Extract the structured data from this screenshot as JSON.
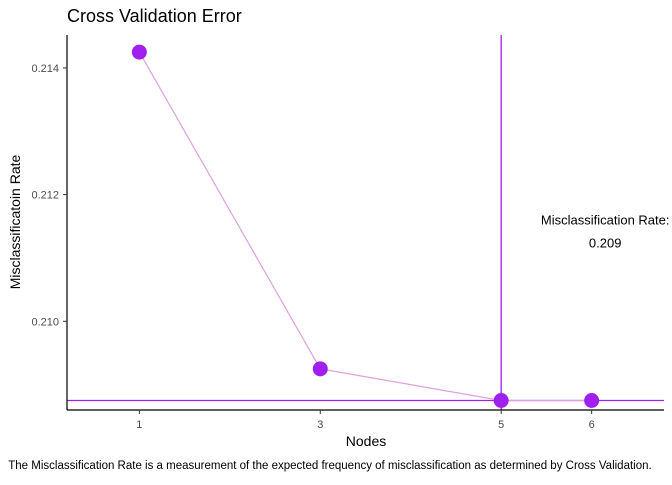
{
  "chart_data": {
    "type": "line",
    "title": "Cross Validation Error",
    "xlabel": "Nodes",
    "ylabel": "Misclassificatoin Rate",
    "caption": "The Misclassification Rate is a measurement of the expected frequency of misclassification as determined by Cross Validation.",
    "x": [
      1,
      3,
      5,
      6
    ],
    "y": [
      0.21425,
      0.20925,
      0.20875,
      0.20875
    ],
    "xticks": [
      "1",
      "3",
      "5",
      "6"
    ],
    "yticks": [
      "0.210",
      "0.212",
      "0.214"
    ],
    "ytick_values": [
      0.21,
      0.212,
      0.214
    ],
    "xlim": [
      0.2,
      6.8
    ],
    "ylim": [
      0.2086,
      0.21452
    ],
    "reference_lines": {
      "vertical_x": 5,
      "horizontal_y": 0.20875
    },
    "annotation": {
      "label": "Misclassification Rate:",
      "value": "0.209",
      "x": 6.15,
      "y": 0.2114
    },
    "grid": false,
    "colors": {
      "point": "#a020f0",
      "line": "#dda0dd",
      "reference": "#a020f0",
      "axis": "#000000",
      "text": "#000000",
      "tick_text": "#4d4d4d"
    }
  }
}
